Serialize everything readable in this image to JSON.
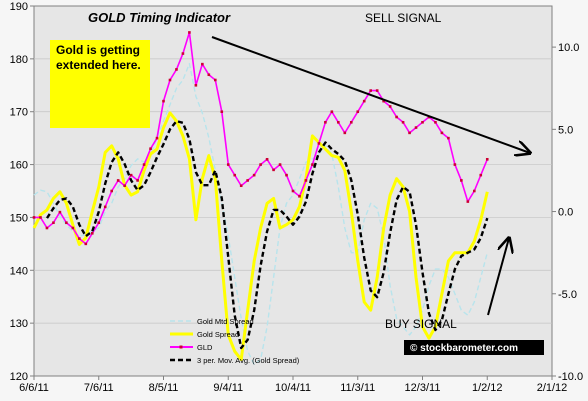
{
  "chart_data": {
    "type": "line",
    "title": "GOLD Timing Indicator",
    "annotations": {
      "sell": "SELL  SIGNAL",
      "buy": "BUY  SIGNAL",
      "note": "Gold is getting extended here.",
      "watermark": "© stockbarometer.com"
    },
    "x_ticks": [
      "6/6/11",
      "7/6/11",
      "8/5/11",
      "9/4/11",
      "10/4/11",
      "11/3/11",
      "12/3/11",
      "1/2/12",
      "2/1/12"
    ],
    "x_range": [
      0,
      240
    ],
    "y_left": {
      "ticks": [
        "120",
        "130",
        "140",
        "150",
        "160",
        "170",
        "180",
        "190"
      ],
      "range": [
        120,
        190
      ]
    },
    "y_right": {
      "ticks": [
        "-10.0",
        "-5.0",
        "0.0",
        "5.0",
        "10.0"
      ],
      "range": [
        -10,
        12.5
      ]
    },
    "legend": {
      "position": "bottom-center",
      "entries": [
        "Gold Mtd Spread",
        "Gold  Spread",
        "GLD",
        "3 per. Mov. Avg. (Gold  Spread)"
      ]
    },
    "series": [
      {
        "name": "GLD",
        "axis": "left",
        "color": "#ff00ff",
        "x": [
          0,
          3,
          6,
          9,
          12,
          15,
          18,
          21,
          24,
          27,
          30,
          33,
          36,
          39,
          42,
          45,
          48,
          51,
          54,
          57,
          60,
          63,
          66,
          69,
          72,
          75,
          78,
          81,
          84,
          87,
          90,
          93,
          96,
          99,
          102,
          105,
          108,
          111,
          114,
          117,
          120,
          123,
          126,
          129,
          132,
          135,
          138,
          141,
          144,
          147,
          150,
          153,
          156,
          159,
          162,
          165,
          168,
          171,
          174,
          177,
          180,
          183,
          186,
          189,
          192,
          195,
          198,
          201,
          204,
          207,
          210
        ],
        "values": [
          150,
          150,
          148,
          149,
          151,
          149,
          148,
          146,
          145,
          147,
          149,
          152,
          155,
          157,
          156,
          158,
          157,
          160,
          163,
          165,
          172,
          176,
          178,
          181,
          185,
          175,
          179,
          177,
          176,
          170,
          160,
          158,
          156,
          157,
          158,
          160,
          161,
          159,
          160,
          158,
          155,
          154,
          157,
          160,
          164,
          168,
          170,
          168,
          166,
          168,
          170,
          172,
          174,
          174,
          172,
          171,
          169,
          168,
          166,
          167,
          168,
          169,
          168,
          166,
          165,
          160,
          157,
          153,
          155,
          158,
          161
        ]
      },
      {
        "name": "Gold  Spread",
        "axis": "right",
        "color": "#ffff00",
        "x": [
          0,
          3,
          6,
          9,
          12,
          15,
          18,
          21,
          24,
          27,
          30,
          33,
          36,
          39,
          42,
          45,
          48,
          51,
          54,
          57,
          60,
          63,
          66,
          69,
          72,
          75,
          78,
          81,
          84,
          87,
          90,
          93,
          96,
          99,
          102,
          105,
          108,
          111,
          114,
          117,
          120,
          123,
          126,
          129,
          132,
          135,
          138,
          141,
          144,
          147,
          150,
          153,
          156,
          159,
          162,
          165,
          168,
          171,
          174,
          177,
          180,
          183,
          186,
          189,
          192,
          195,
          198,
          201,
          204,
          207,
          210
        ],
        "values": [
          -1.0,
          -0.2,
          0.1,
          0.8,
          1.2,
          0.5,
          -0.8,
          -2.0,
          -1.6,
          0.0,
          1.5,
          3.6,
          4.0,
          3.2,
          1.6,
          1.0,
          1.2,
          2.5,
          3.5,
          3.8,
          5.1,
          6.0,
          5.5,
          4.6,
          3.2,
          -0.5,
          2.0,
          3.4,
          2.0,
          -3.0,
          -7.5,
          -8.5,
          -9.0,
          -6.0,
          -3.0,
          -1.0,
          0.5,
          0.8,
          -1.0,
          -0.8,
          -0.5,
          0.3,
          2.0,
          4.6,
          4.2,
          3.8,
          3.4,
          3.3,
          2.5,
          0.0,
          -3.0,
          -5.5,
          -6.0,
          -4.0,
          -1.0,
          1.0,
          2.0,
          1.5,
          0.0,
          -4.0,
          -7.0,
          -7.7,
          -7.0,
          -5.0,
          -3.0,
          -2.5,
          -2.5,
          -2.5,
          -1.8,
          -0.5,
          1.2
        ]
      },
      {
        "name": "3 per. Mov. Avg. (Gold  Spread)",
        "axis": "right",
        "color": "#000000",
        "x": [
          6,
          9,
          12,
          15,
          18,
          21,
          24,
          27,
          30,
          33,
          36,
          39,
          42,
          45,
          48,
          51,
          54,
          57,
          60,
          63,
          66,
          69,
          72,
          75,
          78,
          81,
          84,
          87,
          90,
          93,
          96,
          99,
          102,
          105,
          108,
          111,
          114,
          117,
          120,
          123,
          126,
          129,
          132,
          135,
          138,
          141,
          144,
          147,
          150,
          153,
          156,
          159,
          162,
          165,
          168,
          171,
          174,
          177,
          180,
          183,
          186,
          189,
          192,
          195,
          198,
          201,
          204,
          207,
          210
        ],
        "values": [
          -0.4,
          0.2,
          0.7,
          0.8,
          0.3,
          -0.8,
          -1.5,
          -1.2,
          0.0,
          1.7,
          3.0,
          3.6,
          2.9,
          1.9,
          1.3,
          1.6,
          2.4,
          3.3,
          4.1,
          5.0,
          5.5,
          5.4,
          4.4,
          2.4,
          1.6,
          1.6,
          2.5,
          0.8,
          -2.8,
          -6.3,
          -8.3,
          -7.8,
          -6.0,
          -3.3,
          -1.2,
          0.1,
          0.1,
          -0.3,
          -0.8,
          -0.3,
          0.6,
          2.3,
          3.6,
          4.2,
          3.8,
          3.5,
          3.1,
          1.9,
          -0.2,
          -2.8,
          -4.8,
          -5.2,
          -3.7,
          -1.3,
          0.7,
          1.5,
          1.2,
          -0.8,
          -3.7,
          -6.2,
          -7.2,
          -6.6,
          -5.0,
          -3.5,
          -2.7,
          -2.5,
          -2.3,
          -1.6,
          -0.4
        ]
      },
      {
        "name": "Gold Mtd Spread",
        "axis": "right",
        "color": "#b8e4ec",
        "x": [
          0,
          3,
          6,
          9,
          12,
          15,
          18,
          21,
          24,
          27,
          30,
          33,
          36,
          39,
          42,
          45,
          48,
          51,
          54,
          57,
          60,
          63,
          66,
          69,
          72,
          75,
          78,
          81,
          84,
          87,
          90,
          93,
          96,
          99,
          102,
          105,
          108,
          111,
          114,
          117,
          120,
          123,
          126,
          129,
          132,
          135,
          138,
          141,
          144,
          147,
          150,
          153,
          156,
          159,
          162,
          165,
          168,
          171,
          174,
          177,
          180,
          183,
          186,
          189,
          192,
          195,
          198,
          201,
          204,
          207,
          210
        ],
        "values": [
          1.0,
          1.3,
          1.2,
          0.5,
          -0.3,
          -0.8,
          -1.2,
          -1.5,
          -1.4,
          -1.2,
          -1.0,
          0.0,
          0.5,
          1.5,
          2.0,
          2.8,
          3.2,
          3.0,
          3.5,
          4.5,
          5.5,
          6.5,
          7.5,
          8.0,
          9.0,
          7.0,
          6.0,
          4.5,
          2.5,
          0.5,
          -1.5,
          -4.0,
          -6.5,
          -8.5,
          -9.3,
          -9.0,
          -7.0,
          -4.0,
          -1.0,
          0.5,
          1.0,
          2.0,
          3.0,
          3.2,
          3.5,
          4.0,
          3.5,
          1.5,
          -1.0,
          -2.5,
          -2.5,
          -0.5,
          0.5,
          0.2,
          -1.5,
          -4.5,
          -6.5,
          -7.0,
          -7.5,
          -7.0,
          -6.0,
          -4.5,
          -3.5,
          -3.5,
          -4.0,
          -5.0,
          -6.0,
          -6.3,
          -5.5,
          -4.0,
          -2.5
        ]
      }
    ]
  }
}
